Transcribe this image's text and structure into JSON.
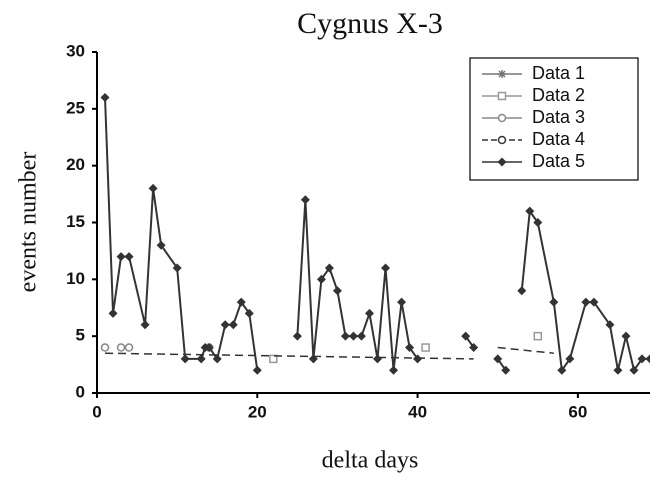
{
  "chart_data": {
    "type": "line",
    "title": "Cygnus X-3",
    "x_label": "delta days",
    "y_label": "events number",
    "xlim": [
      0,
      69
    ],
    "xticks": [
      0,
      20,
      40,
      60
    ],
    "ylim": [
      0,
      30
    ],
    "yticks": [
      0,
      5,
      10,
      15,
      20,
      25,
      30
    ],
    "legend": "upper right",
    "series": [
      {
        "name": "Data 1",
        "color": "#777777",
        "marker": "asterisk",
        "line": false,
        "x": [],
        "values": []
      },
      {
        "name": "Data 2",
        "color": "#999999",
        "marker": "square",
        "line": false,
        "x": [
          22,
          41,
          55
        ],
        "values": [
          3,
          4,
          5
        ]
      },
      {
        "name": "Data 3",
        "color": "#888888",
        "marker": "circle",
        "line": false,
        "x": [
          1,
          3,
          4,
          14
        ],
        "values": [
          4,
          4,
          4,
          4
        ]
      },
      {
        "name": "Data 4",
        "color": "#333333",
        "marker": "none",
        "line": true,
        "dashed": true,
        "x": [
          1,
          47,
          48.5,
          50,
          57
        ],
        "values": [
          3.5,
          3,
          null,
          4,
          3.5
        ]
      },
      {
        "name": "Data 5",
        "color": "#333333",
        "marker": "diamond",
        "line": true,
        "dashed": false,
        "x": [
          1,
          2,
          3,
          4,
          6,
          7,
          8,
          10,
          11,
          13,
          13.5,
          14,
          15,
          16,
          17,
          18,
          19,
          20,
          22.5,
          25,
          26,
          27,
          28,
          29,
          30,
          31,
          32,
          33,
          34,
          35,
          36,
          37,
          38,
          39,
          40,
          43,
          46,
          47,
          48.5,
          50,
          51,
          52,
          53,
          54,
          55,
          57,
          58,
          59,
          61,
          62,
          64,
          65,
          66,
          67,
          68,
          69
        ],
        "values": [
          26,
          7,
          12,
          12,
          6,
          18,
          13,
          11,
          3,
          3,
          4,
          4,
          3,
          6,
          6,
          8,
          7,
          2,
          null,
          5,
          17,
          3,
          10,
          11,
          9,
          5,
          5,
          5,
          7,
          3,
          11,
          2,
          8,
          4,
          3,
          null,
          5,
          4,
          null,
          3,
          2,
          null,
          9,
          16,
          15,
          8,
          2,
          3,
          8,
          8,
          6,
          2,
          5,
          2,
          3,
          3
        ]
      }
    ]
  }
}
